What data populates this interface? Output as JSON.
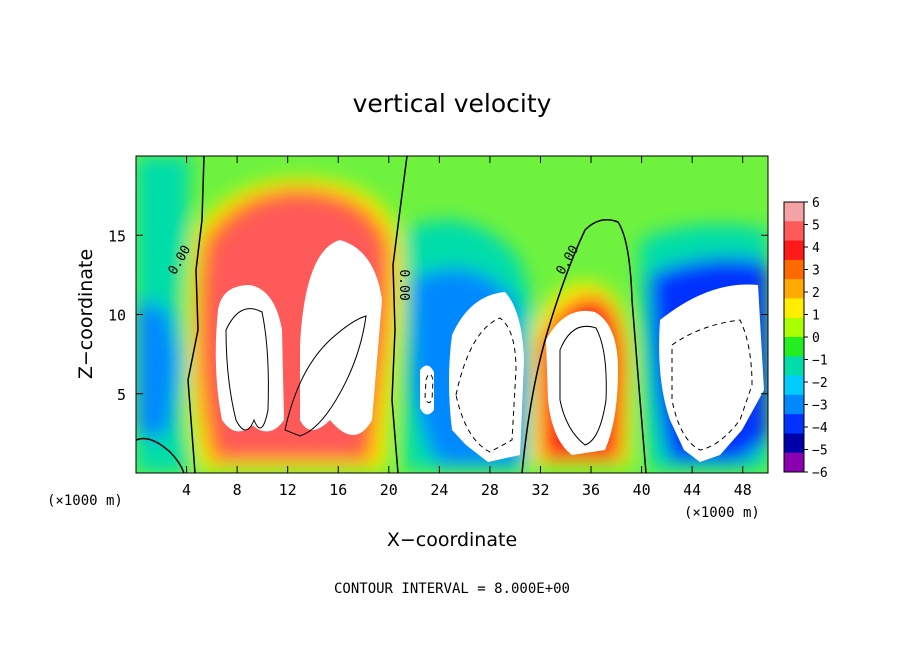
{
  "chart_data": {
    "type": "heatmap",
    "title": "vertical velocity",
    "xlabel": "X−coordinate",
    "ylabel": "Z−coordinate",
    "x_unit_label": "(×1000 m)",
    "x_unit_label_right": "(×1000 m)",
    "xlim": [
      0,
      50
    ],
    "ylim": [
      0,
      20
    ],
    "x_ticks": [
      4,
      8,
      12,
      16,
      20,
      24,
      28,
      32,
      36,
      40,
      44,
      48
    ],
    "y_ticks": [
      5,
      10,
      15
    ],
    "footer": "CONTOUR INTERVAL = 8.000E+00",
    "contour_label": "0.00",
    "colorbar": {
      "min": -6,
      "max": 6,
      "ticks": [
        6,
        5,
        4,
        3,
        2,
        1,
        0,
        -1,
        -2,
        -3,
        -4,
        -5,
        -6
      ],
      "tick_labels": [
        "6",
        "5",
        "4",
        "3",
        "2",
        "1",
        "0",
        "−1",
        "−2",
        "−3",
        "−4",
        "−5",
        "−6"
      ],
      "colors": [
        "#f3a3a3",
        "#ff5a5a",
        "#ff1a1a",
        "#ff6a00",
        "#ffaa00",
        "#ffee00",
        "#aaff00",
        "#22ee22",
        "#00ddaa",
        "#00ccff",
        "#0088ff",
        "#0033ff",
        "#0000aa",
        "#8a00b0"
      ]
    },
    "features": [
      {
        "kind": "updraft",
        "x_center": 9.5,
        "z_center": 8.0,
        "peak": 6
      },
      {
        "kind": "updraft",
        "x_center": 14.5,
        "z_center": 11.0,
        "peak": 6
      },
      {
        "kind": "updraft",
        "x_center": 34.5,
        "z_center": 7.0,
        "peak": 6
      },
      {
        "kind": "downdraft",
        "x_center": 27.5,
        "z_center": 7.0,
        "peak": -6
      },
      {
        "kind": "downdraft",
        "x_center": 45.5,
        "z_center": 6.5,
        "peak": -6
      },
      {
        "kind": "downdraft",
        "x_center": 23.0,
        "z_center": 5.5,
        "peak": -5
      }
    ]
  }
}
